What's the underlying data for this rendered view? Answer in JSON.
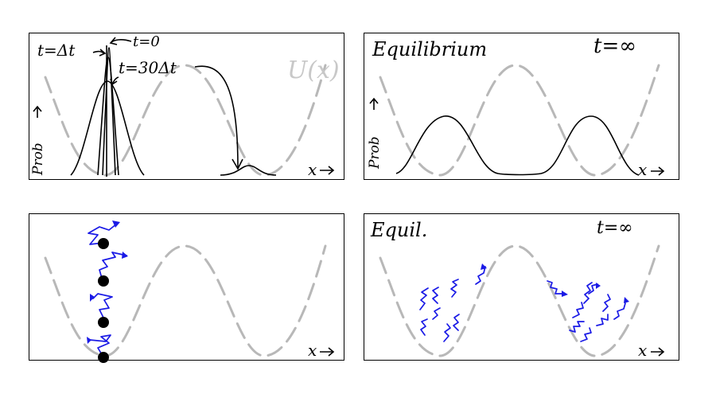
{
  "panels": {
    "top_left": {
      "labels": {
        "t_dt": "t=Δt",
        "t_zero": "t=0",
        "t_30dt": "t=30Δt",
        "potential": "U(x)",
        "yaxis": "Prob",
        "xaxis": "x"
      }
    },
    "top_right": {
      "labels": {
        "title": "Equilibrium",
        "time": "t=∞",
        "yaxis": "Prob",
        "xaxis": "x"
      }
    },
    "bottom_left": {
      "labels": {
        "xaxis": "x"
      },
      "particle_count": 4
    },
    "bottom_right": {
      "labels": {
        "title": "Equil.",
        "time": "t=∞",
        "xaxis": "x"
      }
    }
  },
  "colors": {
    "potential": "#b8b8b8",
    "walker": "#1a1ae6",
    "ink": "#000000"
  }
}
